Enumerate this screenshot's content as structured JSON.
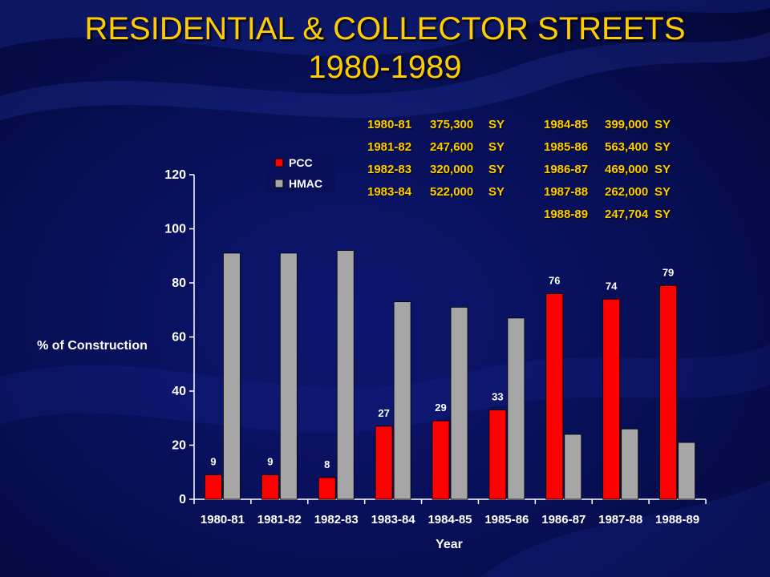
{
  "title": {
    "line1": "RESIDENTIAL & COLLECTOR STREETS",
    "line2": "1980-1989"
  },
  "colors": {
    "title": "#ffcc00",
    "pcc": "#ff0000",
    "hmac": "#a6a6a6",
    "text": "#ffffff",
    "background": "#08105a"
  },
  "sy_table": {
    "left": [
      {
        "year": "1980-81",
        "amount": "375,300",
        "unit": "SY"
      },
      {
        "year": "1981-82",
        "amount": "247,600",
        "unit": "SY"
      },
      {
        "year": "1982-83",
        "amount": "320,000",
        "unit": "SY"
      },
      {
        "year": "1983-84",
        "amount": "522,000",
        "unit": "SY"
      }
    ],
    "right": [
      {
        "year": "1984-85",
        "amount": "399,000",
        "unit": "SY"
      },
      {
        "year": "1985-86",
        "amount": "563,400",
        "unit": "SY"
      },
      {
        "year": "1986-87",
        "amount": "469,000",
        "unit": "SY"
      },
      {
        "year": "1987-88",
        "amount": "262,000",
        "unit": "SY"
      },
      {
        "year": "1988-89",
        "amount": "247,704",
        "unit": "SY"
      }
    ]
  },
  "chart_data": {
    "type": "bar",
    "xlabel": "Year",
    "ylabel": "% of Construction",
    "ylim": [
      0,
      120
    ],
    "yticks": [
      0,
      20,
      40,
      60,
      80,
      100,
      120
    ],
    "grid": false,
    "legend": "top-left",
    "categories": [
      "1980-81",
      "1981-82",
      "1982-83",
      "1983-84",
      "1984-85",
      "1985-86",
      "1986-87",
      "1987-88",
      "1988-89"
    ],
    "series": [
      {
        "name": "PCC",
        "values": [
          9,
          9,
          8,
          27,
          29,
          33,
          76,
          74,
          79
        ],
        "labels": [
          "9",
          "9",
          "8",
          "27",
          "29",
          "33",
          "76",
          "74",
          "79"
        ]
      },
      {
        "name": "HMAC",
        "values": [
          91,
          91,
          92,
          73,
          71,
          67,
          24,
          26,
          21
        ]
      }
    ]
  }
}
